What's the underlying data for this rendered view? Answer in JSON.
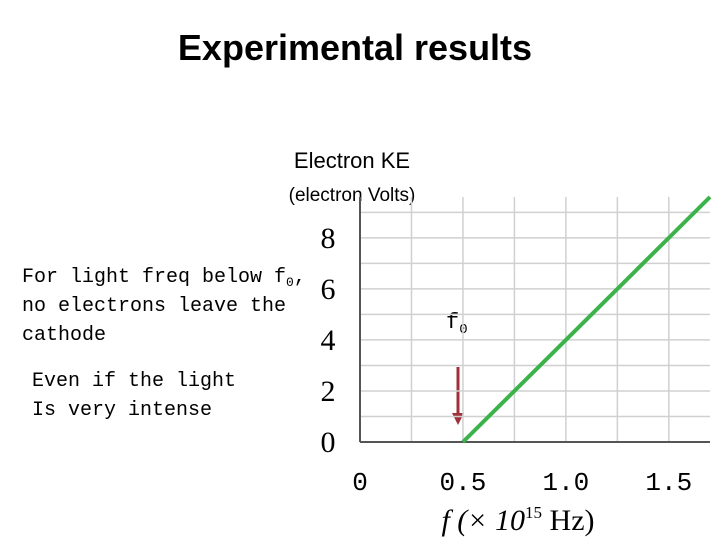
{
  "chart_data": {
    "type": "line",
    "title": "Experimental results",
    "y_label": [
      "Electron KE",
      "(electron Volts)"
    ],
    "x_label": {
      "text": "f (× 10",
      "sup": "15",
      "end": " Hz)"
    },
    "note_1": {
      "line_1": "For light freq below f",
      "line_1_sub": "0",
      "line_1_end": ",",
      "line_2": "no electrons leave the",
      "line_3": "cathode"
    },
    "note_2": [
      "Even if the light",
      "Is very intense"
    ],
    "threshold_label": {
      "text": "f",
      "sub": "0"
    },
    "xlim": [
      0,
      1.7
    ],
    "ylim": [
      0,
      9.6
    ],
    "xticks": [
      0,
      0.5,
      {
        "value": 1,
        "label": "1.0"
      },
      1.5
    ],
    "x_minor_grid": [
      0.25,
      0.75,
      1.25
    ],
    "yticks": [
      0,
      2,
      4,
      6,
      8
    ],
    "y_minor_grid": [
      1,
      3,
      5,
      7,
      9
    ],
    "grid": true,
    "line": {
      "color": "#3cb34a",
      "x": [
        0.5,
        1.7
      ],
      "y": [
        0,
        9.6
      ]
    }
  }
}
